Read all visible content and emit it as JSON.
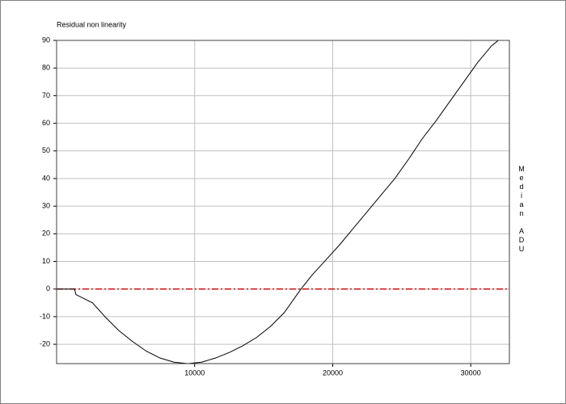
{
  "chart_data": {
    "type": "line",
    "title": "Residual non linearity",
    "y_label": "Median ADU",
    "x": [
      0,
      1300,
      1400,
      2000,
      2600,
      3500,
      4500,
      5500,
      6500,
      7500,
      8500,
      9500,
      10500,
      11500,
      12500,
      13500,
      14500,
      15500,
      16500,
      17700,
      18500,
      19500,
      20500,
      21500,
      22500,
      23500,
      24500,
      25500,
      26500,
      27500,
      28500,
      29500,
      30500,
      31500,
      32000,
      32800
    ],
    "series": [
      {
        "color": "#000000",
        "values": [
          0,
          0,
          -2,
          -3.5,
          -5,
          -10,
          -15,
          -19,
          -22.5,
          -25,
          -26.5,
          -27,
          -26.5,
          -25,
          -23,
          -20.5,
          -17.5,
          -13.5,
          -8.5,
          0,
          5,
          10.5,
          16,
          22,
          28,
          34,
          40,
          47,
          54.5,
          61,
          68,
          75,
          82,
          88,
          90,
          90
        ]
      }
    ],
    "reference_line": {
      "value": 0,
      "color": "#cc0000"
    },
    "xlim": [
      0,
      32800
    ],
    "xticks": [
      10000,
      20000,
      30000
    ],
    "ylim": [
      -27,
      90
    ],
    "yticks": [
      -20,
      -10,
      0,
      10,
      20,
      30,
      40,
      50,
      60,
      70,
      80,
      90
    ],
    "grid": true
  }
}
